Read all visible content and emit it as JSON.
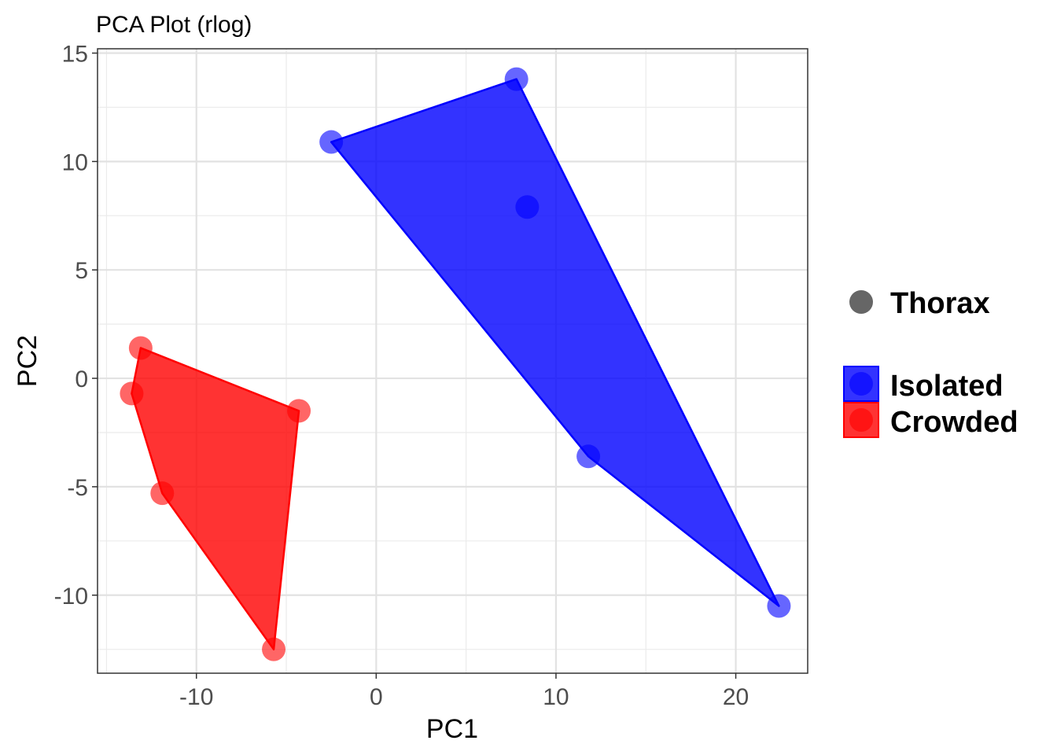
{
  "chart_data": {
    "type": "scatter",
    "title": "PCA Plot (rlog)",
    "xlabel": "PC1",
    "ylabel": "PC2",
    "xlim": [
      -15.5,
      24
    ],
    "ylim": [
      -13.6,
      15.2
    ],
    "x_ticks": [
      -10,
      0,
      10,
      20
    ],
    "y_ticks": [
      15,
      10,
      5,
      0,
      -5,
      -10
    ],
    "x_tick_labels": [
      "-10",
      "0",
      "10",
      "20"
    ],
    "y_tick_labels": [
      "15",
      "10",
      "5",
      "0",
      "-5",
      "-10"
    ],
    "grid": true,
    "legend_position": "right",
    "shape_legend": {
      "label": "Thorax",
      "color": "#666666"
    },
    "series": [
      {
        "name": "Isolated",
        "color": "#0000FF",
        "hull": true,
        "points": [
          {
            "x": -2.5,
            "y": 10.9
          },
          {
            "x": 7.8,
            "y": 13.8
          },
          {
            "x": 8.4,
            "y": 7.9
          },
          {
            "x": 11.8,
            "y": -3.6
          },
          {
            "x": 22.4,
            "y": -10.5
          }
        ]
      },
      {
        "name": "Crowded",
        "color": "#FF0000",
        "hull": true,
        "points": [
          {
            "x": -13.1,
            "y": 1.4
          },
          {
            "x": -13.6,
            "y": -0.7
          },
          {
            "x": -4.3,
            "y": -1.5
          },
          {
            "x": -11.9,
            "y": -5.3
          },
          {
            "x": -5.7,
            "y": -12.5
          }
        ]
      }
    ]
  }
}
